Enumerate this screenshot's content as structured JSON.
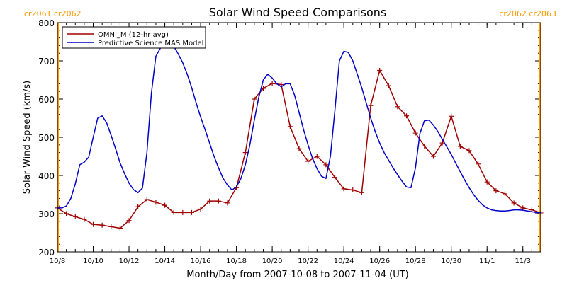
{
  "colors": {
    "omni": "#a00000",
    "model": "#0000c8",
    "rotation": "#ff9900",
    "axis": "#000000",
    "background": "#ffffff"
  },
  "chart_data": {
    "type": "line",
    "title": "Solar Wind Speed Comparisons",
    "xlabel": "Month/Day from 2007-10-08 to 2007-11-04 (UT)",
    "ylabel": "Solar Wind Speed (km/s)",
    "xlim": [
      "2007-10-08",
      "2007-11-04"
    ],
    "ylim": [
      200,
      800
    ],
    "y_ticks": [
      200,
      300,
      400,
      500,
      600,
      700,
      800
    ],
    "x_ticks": [
      {
        "date": "2007-10-08",
        "label": "10/8"
      },
      {
        "date": "2007-10-10",
        "label": "10/10"
      },
      {
        "date": "2007-10-12",
        "label": "10/12"
      },
      {
        "date": "2007-10-14",
        "label": "10/14"
      },
      {
        "date": "2007-10-16",
        "label": "10/16"
      },
      {
        "date": "2007-10-18",
        "label": "10/18"
      },
      {
        "date": "2007-10-20",
        "label": "10/20"
      },
      {
        "date": "2007-10-22",
        "label": "10/22"
      },
      {
        "date": "2007-10-24",
        "label": "10/24"
      },
      {
        "date": "2007-10-26",
        "label": "10/26"
      },
      {
        "date": "2007-10-28",
        "label": "10/28"
      },
      {
        "date": "2007-10-30",
        "label": "10/30"
      },
      {
        "date": "2007-11-01",
        "label": "11/1"
      },
      {
        "date": "2007-11-03",
        "label": "11/3"
      }
    ],
    "legend_position": "top-left",
    "rotation_markers": [
      {
        "date": "2007-10-08",
        "label": "cr2061 cr2062",
        "side": "left"
      },
      {
        "date": "2007-11-04",
        "label": "cr2062 cr2063",
        "side": "right"
      }
    ],
    "series": [
      {
        "name": "OMNI_M (12-hr avg)",
        "color": "#a00000",
        "marker": "plus",
        "points": [
          [
            "2007-10-08 00:00",
            315
          ],
          [
            "2007-10-08 12:00",
            300
          ],
          [
            "2007-10-09 00:00",
            292
          ],
          [
            "2007-10-09 12:00",
            285
          ],
          [
            "2007-10-10 00:00",
            272
          ],
          [
            "2007-10-10 12:00",
            270
          ],
          [
            "2007-10-11 00:00",
            266
          ],
          [
            "2007-10-11 12:00",
            262
          ],
          [
            "2007-10-12 00:00",
            282
          ],
          [
            "2007-10-12 12:00",
            318
          ],
          [
            "2007-10-13 00:00",
            337
          ],
          [
            "2007-10-13 12:00",
            330
          ],
          [
            "2007-10-14 00:00",
            322
          ],
          [
            "2007-10-14 12:00",
            303
          ],
          [
            "2007-10-15 00:00",
            303
          ],
          [
            "2007-10-15 12:00",
            303
          ],
          [
            "2007-10-16 00:00",
            312
          ],
          [
            "2007-10-16 12:00",
            333
          ],
          [
            "2007-10-17 00:00",
            333
          ],
          [
            "2007-10-17 12:00",
            328
          ],
          [
            "2007-10-18 00:00",
            368
          ],
          [
            "2007-10-18 12:00",
            460
          ],
          [
            "2007-10-19 00:00",
            600
          ],
          [
            "2007-10-19 12:00",
            628
          ],
          [
            "2007-10-20 00:00",
            641
          ],
          [
            "2007-10-20 12:00",
            638
          ],
          [
            "2007-10-21 00:00",
            528
          ],
          [
            "2007-10-21 12:00",
            470
          ],
          [
            "2007-10-22 00:00",
            437
          ],
          [
            "2007-10-22 12:00",
            450
          ],
          [
            "2007-10-23 00:00",
            428
          ],
          [
            "2007-10-23 12:00",
            395
          ],
          [
            "2007-10-24 00:00",
            365
          ],
          [
            "2007-10-24 12:00",
            362
          ],
          [
            "2007-10-25 00:00",
            355
          ],
          [
            "2007-10-25 12:00",
            583
          ],
          [
            "2007-10-26 00:00",
            675
          ],
          [
            "2007-10-26 12:00",
            635
          ],
          [
            "2007-10-27 00:00",
            580
          ],
          [
            "2007-10-27 12:00",
            556
          ],
          [
            "2007-10-28 00:00",
            511
          ],
          [
            "2007-10-28 12:00",
            477
          ],
          [
            "2007-10-29 00:00",
            450
          ],
          [
            "2007-10-29 12:00",
            485
          ],
          [
            "2007-10-30 00:00",
            555
          ],
          [
            "2007-10-30 12:00",
            476
          ],
          [
            "2007-10-31 00:00",
            465
          ],
          [
            "2007-10-31 12:00",
            430
          ],
          [
            "2007-11-01 00:00",
            383
          ],
          [
            "2007-11-01 12:00",
            360
          ],
          [
            "2007-11-02 00:00",
            352
          ],
          [
            "2007-11-02 12:00",
            328
          ],
          [
            "2007-11-03 00:00",
            315
          ],
          [
            "2007-11-03 12:00",
            310
          ],
          [
            "2007-11-04 00:00",
            302
          ]
        ]
      },
      {
        "name": "Predictive Science MAS Model",
        "color": "#0000c8",
        "marker": "none",
        "points": [
          [
            "2007-10-08 00:00",
            315
          ],
          [
            "2007-10-08 06:00",
            315
          ],
          [
            "2007-10-08 12:00",
            320
          ],
          [
            "2007-10-08 18:00",
            340
          ],
          [
            "2007-10-09 00:00",
            378
          ],
          [
            "2007-10-09 06:00",
            428
          ],
          [
            "2007-10-09 12:00",
            435
          ],
          [
            "2007-10-09 18:00",
            448
          ],
          [
            "2007-10-10 00:00",
            500
          ],
          [
            "2007-10-10 06:00",
            550
          ],
          [
            "2007-10-10 12:00",
            556
          ],
          [
            "2007-10-10 18:00",
            538
          ],
          [
            "2007-10-11 00:00",
            505
          ],
          [
            "2007-10-11 06:00",
            470
          ],
          [
            "2007-10-11 12:00",
            433
          ],
          [
            "2007-10-11 18:00",
            405
          ],
          [
            "2007-10-12 00:00",
            380
          ],
          [
            "2007-10-12 06:00",
            363
          ],
          [
            "2007-10-12 12:00",
            355
          ],
          [
            "2007-10-12 18:00",
            367
          ],
          [
            "2007-10-13 00:00",
            460
          ],
          [
            "2007-10-13 06:00",
            615
          ],
          [
            "2007-10-13 12:00",
            712
          ],
          [
            "2007-10-13 18:00",
            733
          ],
          [
            "2007-10-14 00:00",
            742
          ],
          [
            "2007-10-14 06:00",
            745
          ],
          [
            "2007-10-14 12:00",
            738
          ],
          [
            "2007-10-14 18:00",
            718
          ],
          [
            "2007-10-15 00:00",
            695
          ],
          [
            "2007-10-15 06:00",
            665
          ],
          [
            "2007-10-15 12:00",
            630
          ],
          [
            "2007-10-15 18:00",
            590
          ],
          [
            "2007-10-16 00:00",
            553
          ],
          [
            "2007-10-16 06:00",
            520
          ],
          [
            "2007-10-16 12:00",
            485
          ],
          [
            "2007-10-16 18:00",
            450
          ],
          [
            "2007-10-17 00:00",
            420
          ],
          [
            "2007-10-17 06:00",
            393
          ],
          [
            "2007-10-17 12:00",
            375
          ],
          [
            "2007-10-17 18:00",
            362
          ],
          [
            "2007-10-18 00:00",
            370
          ],
          [
            "2007-10-18 06:00",
            392
          ],
          [
            "2007-10-18 12:00",
            428
          ],
          [
            "2007-10-18 18:00",
            480
          ],
          [
            "2007-10-19 00:00",
            545
          ],
          [
            "2007-10-19 06:00",
            605
          ],
          [
            "2007-10-19 12:00",
            650
          ],
          [
            "2007-10-19 18:00",
            665
          ],
          [
            "2007-10-20 00:00",
            655
          ],
          [
            "2007-10-20 06:00",
            640
          ],
          [
            "2007-10-20 12:00",
            632
          ],
          [
            "2007-10-20 18:00",
            640
          ],
          [
            "2007-10-21 00:00",
            640
          ],
          [
            "2007-10-21 06:00",
            610
          ],
          [
            "2007-10-21 12:00",
            565
          ],
          [
            "2007-10-21 18:00",
            520
          ],
          [
            "2007-10-22 00:00",
            480
          ],
          [
            "2007-10-22 06:00",
            445
          ],
          [
            "2007-10-22 12:00",
            418
          ],
          [
            "2007-10-22 18:00",
            398
          ],
          [
            "2007-10-23 00:00",
            392
          ],
          [
            "2007-10-23 06:00",
            450
          ],
          [
            "2007-10-23 12:00",
            570
          ],
          [
            "2007-10-23 18:00",
            700
          ],
          [
            "2007-10-24 00:00",
            725
          ],
          [
            "2007-10-24 06:00",
            722
          ],
          [
            "2007-10-24 12:00",
            700
          ],
          [
            "2007-10-24 18:00",
            665
          ],
          [
            "2007-10-25 00:00",
            630
          ],
          [
            "2007-10-25 06:00",
            590
          ],
          [
            "2007-10-25 12:00",
            550
          ],
          [
            "2007-10-25 18:00",
            515
          ],
          [
            "2007-10-26 00:00",
            485
          ],
          [
            "2007-10-26 06:00",
            460
          ],
          [
            "2007-10-26 12:00",
            440
          ],
          [
            "2007-10-26 18:00",
            420
          ],
          [
            "2007-10-27 00:00",
            402
          ],
          [
            "2007-10-27 06:00",
            385
          ],
          [
            "2007-10-27 12:00",
            370
          ],
          [
            "2007-10-27 18:00",
            368
          ],
          [
            "2007-10-28 00:00",
            420
          ],
          [
            "2007-10-28 06:00",
            510
          ],
          [
            "2007-10-28 12:00",
            543
          ],
          [
            "2007-10-28 18:00",
            545
          ],
          [
            "2007-10-29 00:00",
            532
          ],
          [
            "2007-10-29 06:00",
            515
          ],
          [
            "2007-10-29 12:00",
            495
          ],
          [
            "2007-10-29 18:00",
            475
          ],
          [
            "2007-10-30 00:00",
            455
          ],
          [
            "2007-10-30 06:00",
            432
          ],
          [
            "2007-10-30 12:00",
            410
          ],
          [
            "2007-10-30 18:00",
            388
          ],
          [
            "2007-10-31 00:00",
            368
          ],
          [
            "2007-10-31 06:00",
            350
          ],
          [
            "2007-10-31 12:00",
            335
          ],
          [
            "2007-10-31 18:00",
            323
          ],
          [
            "2007-11-01 00:00",
            315
          ],
          [
            "2007-11-01 06:00",
            310
          ],
          [
            "2007-11-01 12:00",
            308
          ],
          [
            "2007-11-01 18:00",
            307
          ],
          [
            "2007-11-02 00:00",
            307
          ],
          [
            "2007-11-02 06:00",
            308
          ],
          [
            "2007-11-02 12:00",
            310
          ],
          [
            "2007-11-02 18:00",
            310
          ],
          [
            "2007-11-03 00:00",
            309
          ],
          [
            "2007-11-03 06:00",
            307
          ],
          [
            "2007-11-03 12:00",
            305
          ],
          [
            "2007-11-03 18:00",
            303
          ],
          [
            "2007-11-04 00:00",
            302
          ]
        ]
      }
    ]
  }
}
